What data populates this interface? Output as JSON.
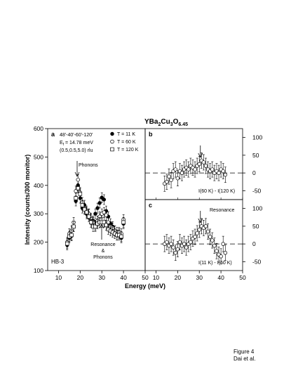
{
  "figure": {
    "title": {
      "main": "YBa",
      "s1": "2",
      "mid": "Cu",
      "s2": "3",
      "end": "O",
      "s3": "6.45"
    },
    "caption": {
      "line1": "Figure 4",
      "line2": "Dai et al."
    }
  },
  "chart_data": [
    {
      "panel": "a",
      "type": "scatter",
      "xlabel": "Energy (meV)",
      "ylabel": "Intensity (counts/300 monitor)",
      "xlim": [
        5,
        50
      ],
      "ylim": [
        100,
        600
      ],
      "xticks": [
        "10",
        "20",
        "30",
        "40",
        "50"
      ],
      "yticks": [
        "100",
        "200",
        "300",
        "400",
        "500",
        "600"
      ],
      "annotations": {
        "config": "48'-40'-60'-120'",
        "ef_pre": "E",
        "ef_sub": "f",
        "ef_post": " = 14.78 meV",
        "q": "(0.5,0.5,5.0) rlu",
        "phonons": "Phonons",
        "resonance1": "Resonance",
        "amp": "&",
        "phonons2": "Phonons",
        "instrument": "HB-3"
      },
      "series": [
        {
          "name": "T = 11 K",
          "marker": "filled-circle",
          "x": [
            14,
            15,
            16,
            17,
            18,
            19,
            20,
            21,
            22,
            23,
            24,
            25,
            26,
            27,
            28,
            29,
            30,
            31,
            32,
            33,
            34,
            35,
            36,
            37,
            38,
            39,
            40
          ],
          "y": [
            190,
            215,
            222,
            255,
            345,
            400,
            355,
            320,
            330,
            300,
            298,
            280,
            275,
            300,
            320,
            338,
            357,
            350,
            310,
            290,
            265,
            255,
            240,
            225,
            230,
            215,
            265
          ]
        },
        {
          "name": "T = 60 K",
          "marker": "open-circle",
          "x": [
            14,
            15,
            16,
            17,
            18,
            19,
            20,
            21,
            22,
            23,
            24,
            25,
            26,
            27,
            28,
            29,
            30,
            31,
            32,
            33,
            34,
            35,
            36,
            37,
            38,
            39,
            40
          ],
          "y": [
            200,
            230,
            240,
            270,
            380,
            420,
            375,
            340,
            320,
            310,
            300,
            285,
            270,
            260,
            275,
            290,
            300,
            305,
            295,
            270,
            255,
            250,
            240,
            235,
            235,
            230,
            280
          ]
        },
        {
          "name": "T = 120 K",
          "marker": "open-square",
          "x": [
            14,
            15,
            16,
            17,
            18,
            19,
            20,
            21,
            22,
            23,
            24,
            25,
            26,
            27,
            28,
            29,
            30,
            31,
            32,
            33,
            34,
            35,
            36,
            37,
            38,
            39,
            40
          ],
          "y": [
            195,
            220,
            225,
            255,
            355,
            390,
            370,
            330,
            315,
            305,
            290,
            270,
            255,
            255,
            265,
            270,
            270,
            270,
            260,
            245,
            240,
            235,
            230,
            225,
            225,
            220,
            270
          ]
        }
      ]
    },
    {
      "panel": "b",
      "type": "scatter",
      "xlim": [
        5,
        50
      ],
      "ylim": [
        -75,
        125
      ],
      "yticks": [
        "100",
        "50",
        "0",
        "-50"
      ],
      "xticks": [],
      "label": "I(60 K) - I(120 K)",
      "arrow_x": 30.5,
      "series": [
        {
          "name": "",
          "marker": "open-circle",
          "x": [
            14,
            15,
            16,
            17,
            18,
            19,
            20,
            21,
            22,
            23,
            24,
            25,
            26,
            27,
            28,
            29,
            30,
            31,
            32,
            33,
            34,
            35,
            36,
            37,
            38,
            39,
            40,
            41,
            42
          ],
          "y": [
            -30,
            -25,
            -10,
            -20,
            5,
            10,
            -15,
            5,
            0,
            10,
            15,
            10,
            20,
            15,
            10,
            20,
            25,
            35,
            30,
            20,
            10,
            5,
            10,
            0,
            5,
            0,
            10,
            5,
            -5
          ]
        }
      ]
    },
    {
      "panel": "c",
      "type": "scatter",
      "xlim": [
        5,
        50
      ],
      "ylim": [
        -75,
        125
      ],
      "yticks": [
        "100",
        "50",
        "0",
        "-50"
      ],
      "xticks": [
        "10",
        "20",
        "30",
        "40",
        "50"
      ],
      "label": "I(11 K) - I(60 K)",
      "annotation": "Resonance",
      "arrow_x": 30.5,
      "series": [
        {
          "name": "",
          "marker": "open-circle",
          "x": [
            14,
            15,
            16,
            17,
            18,
            19,
            20,
            21,
            22,
            23,
            24,
            25,
            26,
            27,
            28,
            29,
            30,
            31,
            32,
            33,
            34,
            35,
            36,
            37,
            38,
            39,
            40,
            41,
            42
          ],
          "y": [
            0,
            5,
            -5,
            0,
            -10,
            -25,
            -15,
            5,
            -5,
            0,
            -10,
            0,
            5,
            15,
            20,
            30,
            40,
            50,
            45,
            50,
            35,
            20,
            10,
            -5,
            -20,
            -30,
            -35,
            0,
            -25
          ]
        }
      ]
    }
  ]
}
